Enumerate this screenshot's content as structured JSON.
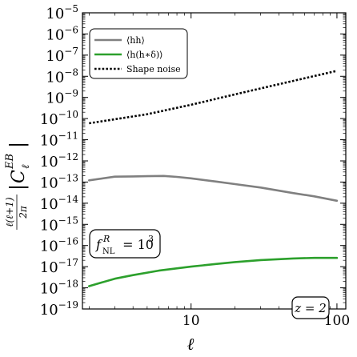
{
  "chart_data": {
    "type": "line",
    "x_scale": "log",
    "y_scale": "log",
    "xlim": [
      1.8,
      115
    ],
    "ylim": [
      1e-19,
      1e-05
    ],
    "x_ticks": [
      {
        "value": 10,
        "label": "10"
      },
      {
        "value": 100,
        "label": "100"
      }
    ],
    "y_ticks": [
      {
        "value": 1e-05,
        "base": "10",
        "exp": "−5"
      },
      {
        "value": 1e-06,
        "base": "10",
        "exp": "−6"
      },
      {
        "value": 1e-07,
        "base": "10",
        "exp": "−7"
      },
      {
        "value": 1e-08,
        "base": "10",
        "exp": "−8"
      },
      {
        "value": 1e-09,
        "base": "10",
        "exp": "−9"
      },
      {
        "value": 1e-10,
        "base": "10",
        "exp": "−10"
      },
      {
        "value": 1e-11,
        "base": "10",
        "exp": "−11"
      },
      {
        "value": 1e-12,
        "base": "10",
        "exp": "−12"
      },
      {
        "value": 1e-13,
        "base": "10",
        "exp": "−13"
      },
      {
        "value": 1e-14,
        "base": "10",
        "exp": "−14"
      },
      {
        "value": 1e-15,
        "base": "10",
        "exp": "−15"
      },
      {
        "value": 1e-16,
        "base": "10",
        "exp": "−16"
      },
      {
        "value": 1e-17,
        "base": "10",
        "exp": "−17"
      },
      {
        "value": 1e-18,
        "base": "10",
        "exp": "−18"
      },
      {
        "value": 1e-19,
        "base": "10",
        "exp": "−19"
      }
    ],
    "xlabel": "ℓ",
    "ylabel": {
      "frac_num": "ℓ(ℓ+1)",
      "frac_den": "2π",
      "symbol": "C",
      "superscript": "EB",
      "subscript": "ℓ"
    },
    "legend_position": "top-left",
    "series": [
      {
        "name": "⟨hh⟩",
        "color": "#808080",
        "style": "solid",
        "points": [
          [
            2,
            1.2e-13
          ],
          [
            3,
            1.8e-13
          ],
          [
            4,
            1.85e-13
          ],
          [
            5,
            1.9e-13
          ],
          [
            6.5,
            1.95e-13
          ],
          [
            8,
            1.75e-13
          ],
          [
            10,
            1.5e-13
          ],
          [
            15,
            1.05e-13
          ],
          [
            20,
            8e-14
          ],
          [
            30,
            5.5e-14
          ],
          [
            50,
            3e-14
          ],
          [
            70,
            2.1e-14
          ],
          [
            100,
            1.3e-14
          ]
        ]
      },
      {
        "name": "⟨h(h∗δ)⟩",
        "color": "#2ca02c",
        "style": "solid",
        "points": [
          [
            2,
            1.2e-18
          ],
          [
            3,
            2.7e-18
          ],
          [
            4,
            4e-18
          ],
          [
            6,
            6.5e-18
          ],
          [
            10,
            1e-17
          ],
          [
            15,
            1.35e-17
          ],
          [
            20,
            1.65e-17
          ],
          [
            30,
            2.05e-17
          ],
          [
            50,
            2.45e-17
          ],
          [
            70,
            2.6e-17
          ],
          [
            100,
            2.6e-17
          ]
        ]
      },
      {
        "name": "Shape noise",
        "color": "#000000",
        "style": "dotted",
        "points": [
          [
            2,
            6e-11
          ],
          [
            5,
            1.6e-10
          ],
          [
            10,
            4.5e-10
          ],
          [
            20,
            1.4e-09
          ],
          [
            50,
            6e-09
          ],
          [
            100,
            1.8e-08
          ]
        ]
      }
    ],
    "annotations": [
      {
        "name": "fnl",
        "symbol": "f",
        "superscript": "R",
        "subscript": "NL",
        "eq": " = 10",
        "exp": "3"
      },
      {
        "name": "redshift",
        "text": "z = 2"
      }
    ]
  }
}
